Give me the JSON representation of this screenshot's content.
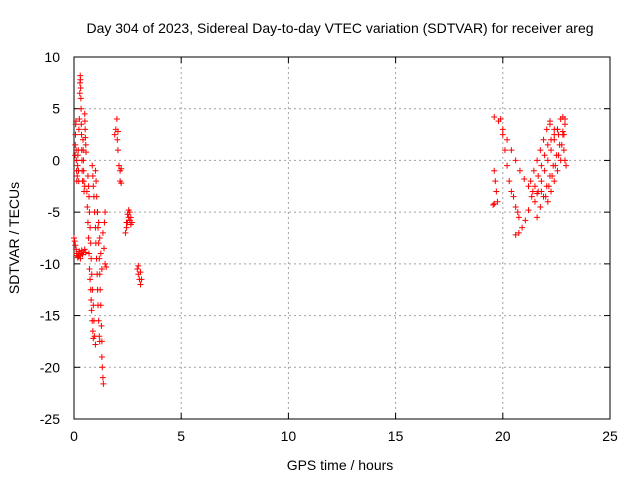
{
  "chart_data": {
    "type": "scatter",
    "title": "Day 304 of 2023, Sidereal Day-to-day VTEC variation (SDTVAR) for receiver areg",
    "xlabel": "GPS time / hours",
    "ylabel": "SDTVAR / TECUs",
    "xlim": [
      0,
      25
    ],
    "ylim": [
      -25,
      10
    ],
    "xticks": [
      "0",
      "5",
      "10",
      "15",
      "20",
      "25"
    ],
    "yticks": [
      "10",
      "5",
      "0",
      "-5",
      "-10",
      "-15",
      "-20",
      "-25"
    ],
    "grid": true,
    "marker": "plus",
    "marker_color": "#ff0000",
    "series": [
      {
        "values": [
          [
            0.0,
            -7.5
          ],
          [
            0.03,
            -7.8
          ],
          [
            0.06,
            -8.2
          ],
          [
            0.1,
            -8.6
          ],
          [
            0.12,
            -9.0
          ],
          [
            0.15,
            -9.2
          ],
          [
            0.18,
            -9.4
          ],
          [
            0.2,
            -9.3
          ],
          [
            0.22,
            -9.0
          ],
          [
            0.25,
            -8.8
          ],
          [
            0.28,
            -9.2
          ],
          [
            0.3,
            -9.5
          ],
          [
            0.33,
            -9.0
          ],
          [
            0.36,
            -8.7
          ],
          [
            0.4,
            -9.1
          ],
          [
            0.45,
            -8.9
          ],
          [
            0.5,
            -8.6
          ],
          [
            0.55,
            -8.9
          ],
          [
            0.05,
            0.5
          ],
          [
            0.06,
            1.5
          ],
          [
            0.07,
            2.5
          ],
          [
            0.08,
            3.5
          ],
          [
            0.09,
            3.8
          ],
          [
            0.1,
            1.0
          ],
          [
            0.11,
            0.0
          ],
          [
            0.12,
            -1.0
          ],
          [
            0.13,
            -2.0
          ],
          [
            0.15,
            -1.5
          ],
          [
            0.17,
            -0.5
          ],
          [
            0.18,
            0.5
          ],
          [
            0.2,
            1.0
          ],
          [
            0.21,
            -1.0
          ],
          [
            0.22,
            -2.0
          ],
          [
            0.23,
            3.0
          ],
          [
            0.25,
            4.0
          ],
          [
            0.27,
            6.5
          ],
          [
            0.28,
            7.5
          ],
          [
            0.29,
            8.2
          ],
          [
            0.3,
            7.8
          ],
          [
            0.31,
            7.0
          ],
          [
            0.32,
            6.0
          ],
          [
            0.33,
            5.0
          ],
          [
            0.34,
            3.5
          ],
          [
            0.35,
            2.5
          ],
          [
            0.36,
            1.0
          ],
          [
            0.37,
            0.0
          ],
          [
            0.38,
            -1.0
          ],
          [
            0.4,
            -2.0
          ],
          [
            0.42,
            2.0
          ],
          [
            0.43,
            1.0
          ],
          [
            0.44,
            0.0
          ],
          [
            0.45,
            -1.0
          ],
          [
            0.46,
            -2.0
          ],
          [
            0.47,
            -3.0
          ],
          [
            0.5,
            -2.5
          ],
          [
            0.5,
            4.5
          ],
          [
            0.51,
            3.8
          ],
          [
            0.52,
            3.0
          ],
          [
            0.53,
            2.2
          ],
          [
            0.55,
            1.5
          ],
          [
            0.56,
            0.8
          ],
          [
            0.6,
            -3.0
          ],
          [
            0.62,
            -4.5
          ],
          [
            0.65,
            -6.0
          ],
          [
            0.68,
            -7.5
          ],
          [
            0.7,
            -9.0
          ],
          [
            0.72,
            -10.5
          ],
          [
            0.75,
            -11.5
          ],
          [
            0.78,
            -12.5
          ],
          [
            0.8,
            -13.5
          ],
          [
            0.82,
            -14.5
          ],
          [
            0.85,
            -15.5
          ],
          [
            0.88,
            -16.5
          ],
          [
            0.9,
            -17.2
          ],
          [
            0.65,
            -1.5
          ],
          [
            0.68,
            -2.5
          ],
          [
            0.7,
            -3.5
          ],
          [
            0.72,
            -5.0
          ],
          [
            0.75,
            -6.5
          ],
          [
            0.78,
            -8.0
          ],
          [
            0.8,
            -9.5
          ],
          [
            0.83,
            -11.0
          ],
          [
            0.86,
            -12.5
          ],
          [
            0.9,
            -14.0
          ],
          [
            0.93,
            -15.5
          ],
          [
            0.96,
            -17.0
          ],
          [
            1.0,
            -17.8
          ],
          [
            0.85,
            -0.5
          ],
          [
            0.88,
            -1.5
          ],
          [
            0.9,
            -2.5
          ],
          [
            0.93,
            -3.5
          ],
          [
            0.96,
            -5.0
          ],
          [
            1.0,
            -6.5
          ],
          [
            1.02,
            -8.0
          ],
          [
            1.05,
            -9.5
          ],
          [
            1.08,
            -11.0
          ],
          [
            1.1,
            -12.5
          ],
          [
            1.12,
            -14.0
          ],
          [
            1.15,
            -15.5
          ],
          [
            1.18,
            -17.0
          ],
          [
            1.2,
            -17.5
          ],
          [
            1.0,
            -1.0
          ],
          [
            1.03,
            -2.0
          ],
          [
            1.06,
            -3.5
          ],
          [
            1.09,
            -5.0
          ],
          [
            1.12,
            -6.5
          ],
          [
            1.15,
            -8.0
          ],
          [
            1.18,
            -9.5
          ],
          [
            1.2,
            -11.0
          ],
          [
            1.22,
            -12.5
          ],
          [
            1.25,
            -14.0
          ],
          [
            1.28,
            -16.0
          ],
          [
            1.3,
            -17.5
          ],
          [
            1.1,
            -5.0
          ],
          [
            1.15,
            -6.0
          ],
          [
            1.2,
            -7.5
          ],
          [
            1.25,
            -9.0
          ],
          [
            1.3,
            -10.5
          ],
          [
            1.3,
            -19.0
          ],
          [
            1.32,
            -20.0
          ],
          [
            1.35,
            -21.0
          ],
          [
            1.37,
            -21.6
          ],
          [
            1.35,
            -7.0
          ],
          [
            1.4,
            -8.5
          ],
          [
            1.45,
            -10.0
          ],
          [
            1.5,
            -10.3
          ],
          [
            1.42,
            -6.0
          ],
          [
            1.45,
            -5.0
          ],
          [
            1.9,
            2.5
          ],
          [
            1.95,
            3.0
          ],
          [
            2.0,
            4.0
          ],
          [
            2.02,
            2.0
          ],
          [
            2.05,
            1.0
          ],
          [
            2.05,
            2.8
          ],
          [
            2.1,
            -0.5
          ],
          [
            2.15,
            -1.0
          ],
          [
            2.2,
            -0.8
          ],
          [
            2.15,
            -2.0
          ],
          [
            2.2,
            -2.2
          ],
          [
            2.4,
            -7.0
          ],
          [
            2.45,
            -6.5
          ],
          [
            2.5,
            -6.0
          ],
          [
            2.55,
            -5.5
          ],
          [
            2.6,
            -5.0
          ],
          [
            2.65,
            -5.5
          ],
          [
            2.7,
            -6.0
          ],
          [
            2.45,
            -6.0
          ],
          [
            2.5,
            -5.2
          ],
          [
            2.55,
            -4.8
          ],
          [
            2.6,
            -5.8
          ],
          [
            2.65,
            -6.2
          ],
          [
            2.95,
            -10.5
          ],
          [
            3.0,
            -11.0
          ],
          [
            3.05,
            -11.5
          ],
          [
            3.1,
            -12.0
          ],
          [
            3.15,
            -11.5
          ],
          [
            3.0,
            -10.2
          ],
          [
            3.1,
            -10.8
          ]
        ]
      },
      {
        "values": [
          [
            19.6,
            4.2
          ],
          [
            19.8,
            3.8
          ],
          [
            20.0,
            3.0
          ],
          [
            20.2,
            2.0
          ],
          [
            20.4,
            1.0
          ],
          [
            20.6,
            0.0
          ],
          [
            20.8,
            -1.0
          ],
          [
            21.0,
            -1.8
          ],
          [
            21.2,
            -2.5
          ],
          [
            21.4,
            -3.0
          ],
          [
            21.6,
            -3.2
          ],
          [
            21.8,
            -3.0
          ],
          [
            19.9,
            4.0
          ],
          [
            20.0,
            2.5
          ],
          [
            20.1,
            1.0
          ],
          [
            20.2,
            -0.5
          ],
          [
            20.3,
            -2.0
          ],
          [
            20.4,
            -3.0
          ],
          [
            20.5,
            -3.5
          ],
          [
            20.6,
            -4.5
          ],
          [
            20.7,
            -5.0
          ],
          [
            20.75,
            -5.5
          ],
          [
            19.6,
            -1.0
          ],
          [
            19.65,
            -2.0
          ],
          [
            19.7,
            -3.0
          ],
          [
            19.75,
            -4.0
          ],
          [
            19.6,
            -4.2
          ],
          [
            19.55,
            -4.3
          ],
          [
            20.6,
            -7.2
          ],
          [
            20.75,
            -7.0
          ],
          [
            20.9,
            -6.5
          ],
          [
            21.05,
            -5.8
          ],
          [
            21.2,
            -4.8
          ],
          [
            21.35,
            -3.5
          ],
          [
            21.5,
            -2.5
          ],
          [
            21.65,
            -1.5
          ],
          [
            21.8,
            -0.5
          ],
          [
            21.95,
            0.5
          ],
          [
            22.1,
            1.5
          ],
          [
            22.25,
            2.0
          ],
          [
            22.4,
            2.5
          ],
          [
            22.55,
            3.0
          ],
          [
            21.3,
            -2.0
          ],
          [
            21.45,
            -1.0
          ],
          [
            21.6,
            0.0
          ],
          [
            21.75,
            1.0
          ],
          [
            21.9,
            2.0
          ],
          [
            22.05,
            3.0
          ],
          [
            22.2,
            3.8
          ],
          [
            21.5,
            -4.0
          ],
          [
            21.65,
            -3.0
          ],
          [
            21.8,
            -2.0
          ],
          [
            21.95,
            -1.0
          ],
          [
            22.1,
            0.0
          ],
          [
            22.25,
            1.0
          ],
          [
            22.4,
            2.0
          ],
          [
            22.55,
            3.0
          ],
          [
            22.7,
            4.0
          ],
          [
            22.8,
            4.2
          ],
          [
            21.6,
            -5.5
          ],
          [
            21.75,
            -4.5
          ],
          [
            21.9,
            -3.5
          ],
          [
            22.05,
            -2.5
          ],
          [
            22.2,
            -1.5
          ],
          [
            22.35,
            -0.5
          ],
          [
            22.5,
            0.5
          ],
          [
            22.65,
            1.5
          ],
          [
            22.8,
            2.5
          ],
          [
            22.9,
            3.5
          ],
          [
            22.0,
            -3.5
          ],
          [
            22.15,
            -2.5
          ],
          [
            22.3,
            -1.5
          ],
          [
            22.45,
            -0.5
          ],
          [
            22.6,
            0.5
          ],
          [
            22.75,
            1.5
          ],
          [
            22.85,
            2.5
          ],
          [
            22.1,
            -4.0
          ],
          [
            22.25,
            -3.0
          ],
          [
            22.4,
            -2.0
          ],
          [
            22.55,
            -1.0
          ],
          [
            22.7,
            0.0
          ],
          [
            22.85,
            1.0
          ],
          [
            22.9,
            0.0
          ],
          [
            22.95,
            -0.5
          ],
          [
            22.2,
            3.5
          ],
          [
            22.4,
            3.0
          ],
          [
            22.6,
            2.5
          ],
          [
            22.8,
            2.8
          ],
          [
            22.9,
            4.0
          ]
        ]
      }
    ]
  }
}
